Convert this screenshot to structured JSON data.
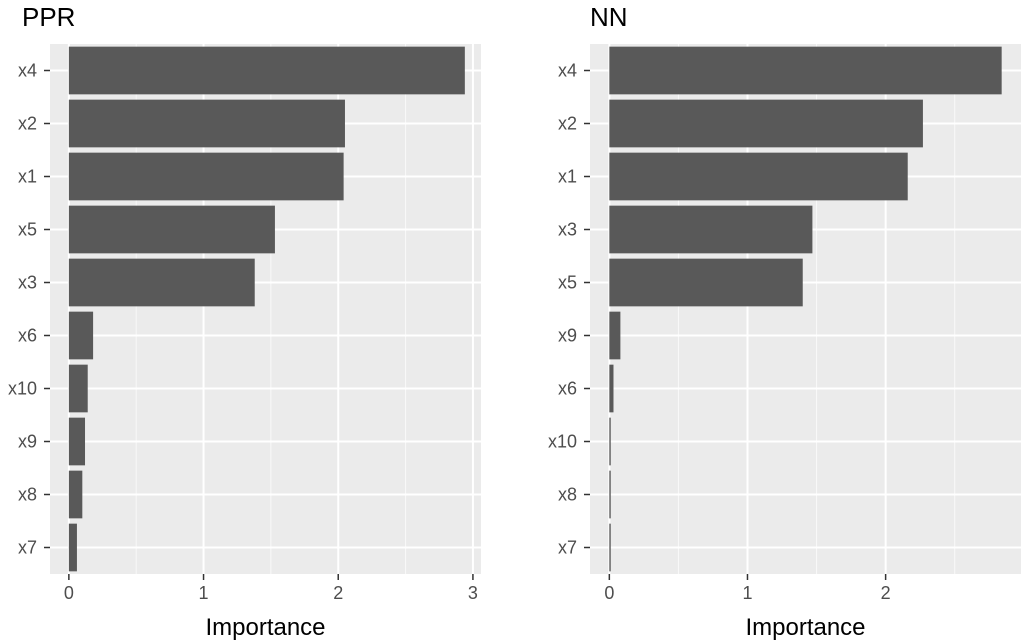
{
  "chart_data": [
    {
      "type": "bar",
      "orientation": "horizontal",
      "title": "PPR",
      "xlabel": "Importance",
      "ylabel": "",
      "categories": [
        "x4",
        "x2",
        "x1",
        "x5",
        "x3",
        "x6",
        "x10",
        "x9",
        "x8",
        "x7"
      ],
      "values": [
        2.94,
        2.05,
        2.04,
        1.53,
        1.38,
        0.18,
        0.14,
        0.12,
        0.1,
        0.06
      ],
      "xlim": [
        -0.14,
        3.06
      ],
      "xticks": [
        0,
        1,
        2,
        3
      ],
      "xtick_labels": [
        "0",
        "1",
        "2",
        "3"
      ],
      "grid": true,
      "bar_color": "#595959",
      "panel_color": "#ebebeb"
    },
    {
      "type": "bar",
      "orientation": "horizontal",
      "title": "NN",
      "xlabel": "Importance",
      "ylabel": "",
      "categories": [
        "x4",
        "x2",
        "x1",
        "x3",
        "x5",
        "x9",
        "x6",
        "x10",
        "x8",
        "x7"
      ],
      "values": [
        2.84,
        2.27,
        2.16,
        1.47,
        1.4,
        0.08,
        0.03,
        0.01,
        0.01,
        0.01
      ],
      "xlim": [
        -0.14,
        2.98
      ],
      "xticks": [
        0,
        1,
        2
      ],
      "xtick_labels": [
        "0",
        "1",
        "2"
      ],
      "grid": true,
      "bar_color": "#595959",
      "panel_color": "#ebebeb"
    }
  ]
}
